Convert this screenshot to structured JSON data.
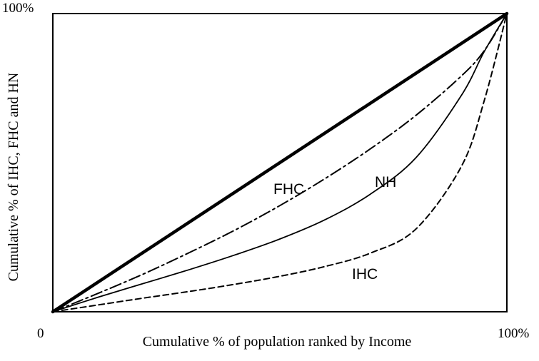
{
  "chart_data": {
    "type": "line",
    "title": "",
    "xlabel": "Cumulative % of population ranked by Income",
    "ylabel": "Cumulative % of IHC, FHC and HN",
    "xlim": [
      0,
      100
    ],
    "ylim": [
      0,
      100
    ],
    "x_tick_labels": {
      "start": "0",
      "end": "100%"
    },
    "y_tick_labels": {
      "end": "100%"
    },
    "grid": false,
    "legend": "none",
    "series": [
      {
        "style": "solid-thick",
        "x": [
          0,
          100
        ],
        "y": [
          0,
          100
        ]
      },
      {
        "name": "FHC",
        "style": "dash-dot",
        "x": [
          0,
          10,
          20,
          30,
          40,
          50,
          60,
          70,
          80,
          90,
          95,
          100
        ],
        "y": [
          0,
          6.2,
          12.7,
          19.8,
          27.3,
          35.6,
          44.7,
          54.7,
          65.9,
          79.1,
          87.5,
          100
        ]
      },
      {
        "name": "NH",
        "style": "solid-thin",
        "x": [
          0,
          10,
          20,
          30,
          40,
          50,
          60,
          70,
          80,
          90,
          95,
          100
        ],
        "y": [
          0,
          4.9,
          9.5,
          14.1,
          19.0,
          24.4,
          30.9,
          39.5,
          51.7,
          72.6,
          87.2,
          100
        ]
      },
      {
        "name": "IHC",
        "style": "dashed",
        "x": [
          0,
          10,
          20,
          30,
          40,
          50,
          60,
          70,
          80,
          90,
          95,
          100
        ],
        "y": [
          0,
          2.3,
          4.6,
          6.8,
          9.2,
          11.9,
          15.2,
          19.7,
          27.8,
          48.8,
          70.7,
          100
        ]
      }
    ],
    "annotations": [
      {
        "text": "FHC",
        "series": "FHC"
      },
      {
        "text": "NH",
        "series": "NH"
      },
      {
        "text": "IHC",
        "series": "IHC"
      }
    ]
  }
}
